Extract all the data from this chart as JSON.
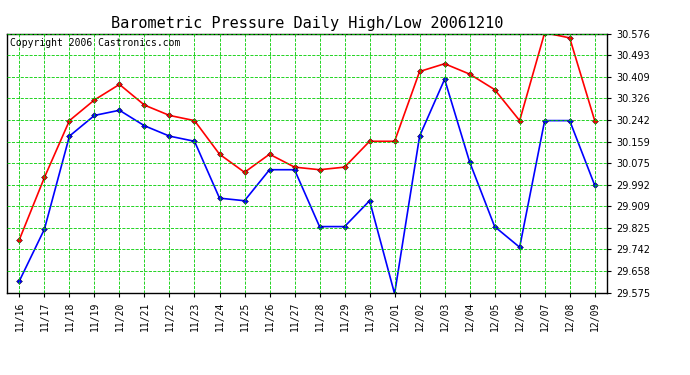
{
  "title": "Barometric Pressure Daily High/Low 20061210",
  "copyright": "Copyright 2006 Castronics.com",
  "x_labels": [
    "11/16",
    "11/17",
    "11/18",
    "11/19",
    "11/20",
    "11/21",
    "11/22",
    "11/23",
    "11/24",
    "11/25",
    "11/26",
    "11/27",
    "11/28",
    "11/29",
    "11/30",
    "12/01",
    "12/02",
    "12/03",
    "12/04",
    "12/05",
    "12/06",
    "12/07",
    "12/08",
    "12/09"
  ],
  "high_values": [
    29.78,
    30.02,
    30.24,
    30.32,
    30.38,
    30.3,
    30.26,
    30.24,
    30.11,
    30.04,
    30.11,
    30.06,
    30.05,
    30.06,
    30.16,
    30.16,
    30.43,
    30.46,
    30.42,
    30.36,
    30.24,
    30.58,
    30.56,
    30.24
  ],
  "low_values": [
    29.62,
    29.82,
    30.18,
    30.26,
    30.28,
    30.22,
    30.18,
    30.16,
    29.94,
    29.93,
    30.05,
    30.05,
    29.83,
    29.83,
    29.93,
    29.57,
    30.18,
    30.4,
    30.08,
    29.83,
    29.75,
    30.24,
    30.24,
    29.99
  ],
  "high_color": "#ff0000",
  "low_color": "#0000ff",
  "bg_color": "#ffffff",
  "plot_bg": "#ffffff",
  "grid_color": "#00cc00",
  "title_fontsize": 11,
  "copyright_fontsize": 7,
  "ylim": [
    29.575,
    30.576
  ],
  "yticks": [
    29.575,
    29.658,
    29.742,
    29.825,
    29.909,
    29.992,
    30.075,
    30.159,
    30.242,
    30.326,
    30.409,
    30.493,
    30.576
  ]
}
